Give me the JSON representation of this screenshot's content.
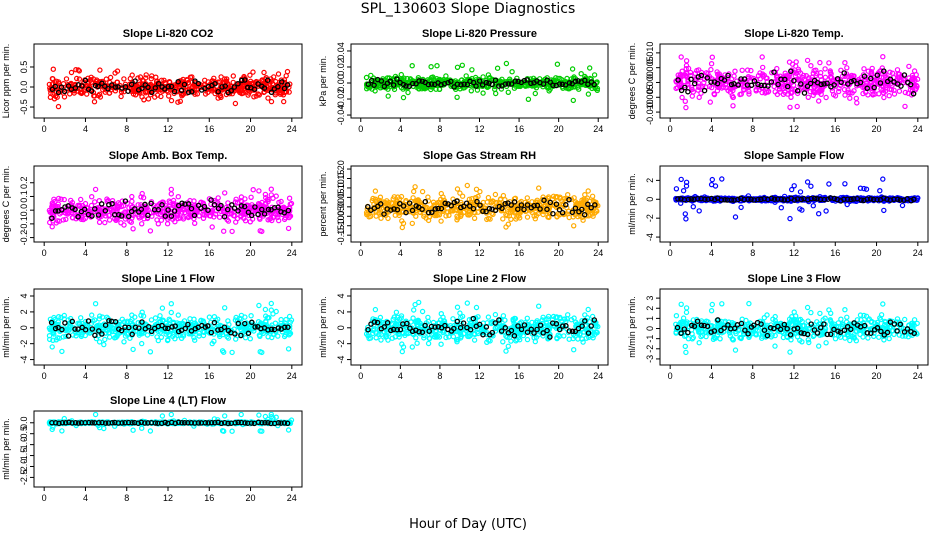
{
  "figure": {
    "title": "SPL_130603  Slope Diagnostics",
    "xlabel": "Hour of Day (UTC)"
  },
  "chart_data": [
    {
      "type": "scatter",
      "title": "Slope Li-820 CO2",
      "ylabel": "Licor ppm per min.",
      "color": "#ff0000",
      "xlim": [
        0,
        24
      ],
      "xticks": [
        0,
        4,
        8,
        12,
        16,
        20,
        24
      ],
      "ylim": [
        -0.7,
        1.0
      ],
      "yticks": [
        -0.5,
        0.0,
        0.5
      ],
      "ytick_labels": [
        "-0.5",
        "0.0",
        "0.5"
      ],
      "spread": 0.22,
      "outlier_spread": 0.5
    },
    {
      "type": "scatter",
      "title": "Slope Li-820 Pressure",
      "ylabel": "kPa per min.",
      "color": "#00cc00",
      "xlim": [
        0,
        24
      ],
      "xticks": [
        0,
        4,
        8,
        12,
        16,
        20,
        24
      ],
      "ylim": [
        -0.04,
        0.045
      ],
      "yticks": [
        -0.04,
        -0.02,
        0.0,
        0.02,
        0.04
      ],
      "ytick_labels": [
        "-0.04",
        "-0.02",
        "0.00",
        "0.02",
        "0.04"
      ],
      "spread": 0.007,
      "outlier_spread": 0.025
    },
    {
      "type": "scatter",
      "title": "Slope Li-820 Temp.",
      "ylabel": "degrees C per min.",
      "color": "#ff00ff",
      "xlim": [
        0,
        24
      ],
      "xticks": [
        0,
        4,
        8,
        12,
        16,
        20,
        24
      ],
      "ylim": [
        -0.011,
        0.012
      ],
      "yticks": [
        -0.01,
        -0.005,
        0.0,
        0.005,
        0.01
      ],
      "ytick_labels": [
        "-0.010",
        "-0.005",
        "0.000",
        "0.005",
        "0.010"
      ],
      "spread": 0.0045,
      "outlier_spread": 0.009
    },
    {
      "type": "scatter",
      "title": "Slope Amb. Box Temp.",
      "ylabel": "degrees C per min.",
      "color": "#ff00ff",
      "xlim": [
        0,
        24
      ],
      "xticks": [
        0,
        4,
        8,
        12,
        16,
        20,
        24
      ],
      "ylim": [
        -0.21,
        0.3
      ],
      "yticks": [
        -0.2,
        -0.1,
        0.0,
        0.1,
        0.2
      ],
      "ytick_labels": [
        "-0.2",
        "-0.1",
        "0.0",
        "0.1",
        "0.2"
      ],
      "spread": 0.08,
      "outlier_spread": 0.16
    },
    {
      "type": "scatter",
      "title": "Slope Gas Stream RH",
      "ylabel": "percent per min.",
      "color": "#ffaa00",
      "xlim": [
        0,
        24
      ],
      "xticks": [
        0,
        4,
        8,
        12,
        16,
        20,
        24
      ],
      "ylim": [
        -0.17,
        0.2
      ],
      "yticks": [
        -0.15,
        -0.1,
        -0.05,
        0.0,
        0.05,
        0.1,
        0.15,
        0.2
      ],
      "ytick_labels": [
        "-0.15",
        "-0.10",
        "-0.05",
        "0.00",
        "0.05",
        "0.10",
        "0.15",
        "0.20"
      ],
      "spread": 0.055,
      "outlier_spread": 0.12
    },
    {
      "type": "scatter",
      "title": "Slope Sample Flow",
      "ylabel": "ml/min per min.",
      "color": "#0000ff",
      "xlim": [
        0,
        24
      ],
      "xticks": [
        0,
        4,
        8,
        12,
        16,
        20,
        24
      ],
      "ylim": [
        -4.2,
        3.2
      ],
      "yticks": [
        -4,
        -2,
        0,
        2
      ],
      "ytick_labels": [
        "-4",
        "-2",
        "0",
        "2"
      ],
      "spread": 0.18,
      "outlier_spread": 2.2
    },
    {
      "type": "scatter",
      "title": "Slope Line 1 Flow",
      "ylabel": "ml/min per min.",
      "color": "#00ffff",
      "xlim": [
        0,
        24
      ],
      "xticks": [
        0,
        4,
        8,
        12,
        16,
        20,
        24
      ],
      "ylim": [
        -4.3,
        4.5
      ],
      "yticks": [
        -4,
        -2,
        0,
        2,
        4
      ],
      "ytick_labels": [
        "-4",
        "-2",
        "0",
        "2",
        "4"
      ],
      "spread": 1.3,
      "outlier_spread": 3.2
    },
    {
      "type": "scatter",
      "title": "Slope Line 2 Flow",
      "ylabel": "ml/min per min.",
      "color": "#00ffff",
      "xlim": [
        0,
        24
      ],
      "xticks": [
        0,
        4,
        8,
        12,
        16,
        20,
        24
      ],
      "ylim": [
        -4.3,
        4.5
      ],
      "yticks": [
        -4,
        -2,
        0,
        2,
        4
      ],
      "ytick_labels": [
        "-4",
        "-2",
        "0",
        "2",
        "4"
      ],
      "spread": 1.4,
      "outlier_spread": 3.3
    },
    {
      "type": "scatter",
      "title": "Slope Line 3 Flow",
      "ylabel": "ml/min per min.",
      "color": "#00ffff",
      "xlim": [
        0,
        24
      ],
      "xticks": [
        0,
        4,
        8,
        12,
        16,
        20,
        24
      ],
      "ylim": [
        -3.3,
        3.6
      ],
      "yticks": [
        -3,
        -2,
        -1,
        0,
        1,
        2,
        3
      ],
      "ytick_labels": [
        "-3",
        "-2",
        "-1",
        "0",
        "1",
        "2",
        "3"
      ],
      "spread": 1.0,
      "outlier_spread": 2.5
    },
    {
      "type": "scatter",
      "title": "Slope Line 4 (LT) Flow",
      "ylabel": "ml/min per min.",
      "color": "#00ffff",
      "xlim": [
        0,
        24
      ],
      "xticks": [
        0,
        4,
        8,
        12,
        16,
        20,
        24
      ],
      "ylim": [
        -2.8,
        0.4
      ],
      "yticks": [
        -2.5,
        -2.0,
        -1.5,
        -1.0,
        -0.5,
        0.0
      ],
      "ytick_labels": [
        "-2.5",
        "-2.0",
        "-1.5",
        "-1.0",
        "-0.5",
        "0.0"
      ],
      "spread": 0.04,
      "outlier_spread": 0.4
    }
  ]
}
